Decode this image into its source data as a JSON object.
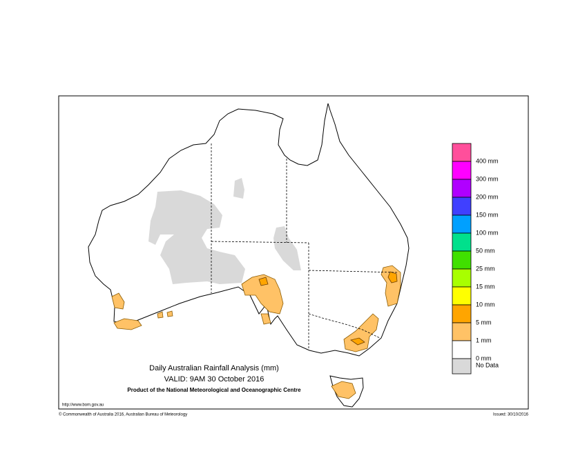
{
  "header": {
    "title": "Daily Australian Rainfall Analysis (mm)",
    "valid": "VALID: 9AM 30 October 2016",
    "product": "Product of the National Meteorological and Oceanographic Centre"
  },
  "legend": {
    "labels": [
      "400 mm",
      "300 mm",
      "200 mm",
      "150 mm",
      "100 mm",
      "50 mm",
      "25 mm",
      "15 mm",
      "10 mm",
      "5 mm",
      "1 mm",
      "0 mm",
      "No Data"
    ],
    "colors": [
      "#ff4f9b",
      "#ff00ff",
      "#b000ff",
      "#4040ff",
      "#00a0ff",
      "#00e08c",
      "#40e000",
      "#a8ff00",
      "#ffff00",
      "#ffa500",
      "#ffc266",
      "#ffffff",
      "#d9d9d9"
    ]
  },
  "footer": {
    "url": "http://www.bom.gov.au",
    "copyright": "© Commonwealth of Australia 2016, Australian Bureau of Meteorology",
    "issued": "Issued: 30/10/2016"
  }
}
